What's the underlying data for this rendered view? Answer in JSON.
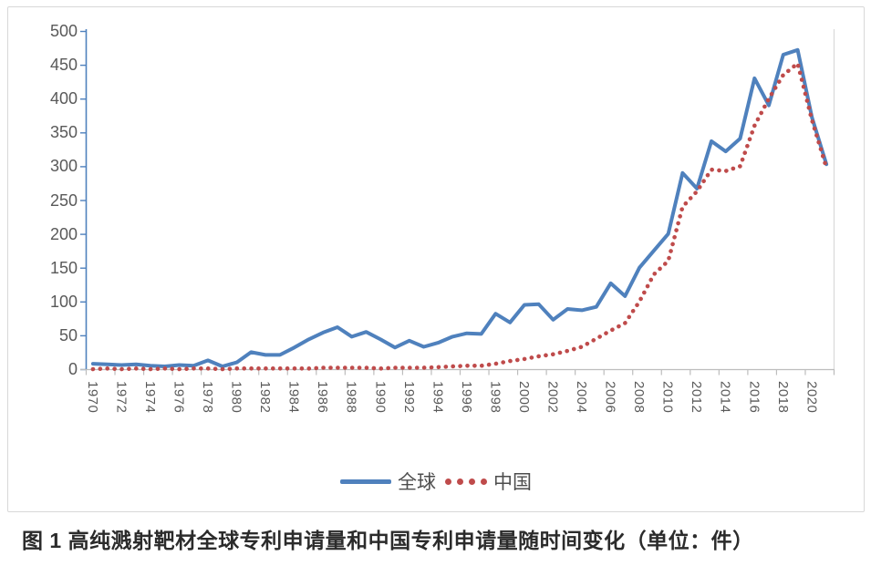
{
  "caption": "图 1  高纯溅射靶材全球专利申请量和中国专利申请量随时间变化（单位：件）",
  "legend": [
    {
      "label": "全球",
      "color": "#4f81bd",
      "style": "solid"
    },
    {
      "label": "中国",
      "color": "#bf4b4b",
      "style": "dotted"
    }
  ],
  "colors": {
    "global_series": "#4f81bd",
    "china_series": "#bf4b4b",
    "y_axis": "#4f81bd",
    "x_axis": "#bdbdbd",
    "plot_right_border": "#d9d9d9",
    "tick_text": "#595959"
  },
  "chart_data": {
    "type": "line",
    "title": "",
    "xlabel": "",
    "ylabel": "",
    "grid": false,
    "legend_position": "bottom",
    "ylim": [
      0,
      500
    ],
    "y_ticks": [
      0,
      50,
      100,
      150,
      200,
      250,
      300,
      350,
      400,
      450,
      500
    ],
    "x": [
      1970,
      1971,
      1972,
      1973,
      1974,
      1975,
      1976,
      1977,
      1978,
      1979,
      1980,
      1981,
      1982,
      1983,
      1984,
      1985,
      1986,
      1987,
      1988,
      1989,
      1990,
      1991,
      1992,
      1993,
      1994,
      1995,
      1996,
      1997,
      1998,
      1999,
      2000,
      2001,
      2002,
      2003,
      2004,
      2005,
      2006,
      2007,
      2008,
      2009,
      2010,
      2011,
      2012,
      2013,
      2014,
      2015,
      2016,
      2017,
      2018,
      2019,
      2020,
      2021
    ],
    "x_tick_labels": [
      "1970",
      "1972",
      "1974",
      "1976",
      "1978",
      "1980",
      "1982",
      "1984",
      "1986",
      "1988",
      "1990",
      "1992",
      "1994",
      "1996",
      "1998",
      "2000",
      "2002",
      "2004",
      "2006",
      "2008",
      "2010",
      "2012",
      "2014",
      "2016",
      "2018",
      "2020"
    ],
    "series": [
      {
        "name": "全球",
        "style": "solid",
        "values": [
          8,
          7,
          6,
          7,
          5,
          4,
          6,
          5,
          13,
          4,
          10,
          25,
          21,
          21,
          32,
          44,
          54,
          62,
          48,
          55,
          44,
          32,
          42,
          33,
          39,
          48,
          53,
          52,
          82,
          69,
          95,
          96,
          73,
          89,
          87,
          92,
          127,
          108,
          150,
          175,
          200,
          290,
          267,
          337,
          322,
          341,
          430,
          390,
          465,
          472,
          372,
          303
        ]
      },
      {
        "name": "中国",
        "style": "dotted",
        "values": [
          0,
          1,
          0,
          1,
          0,
          1,
          0,
          1,
          1,
          0,
          1,
          1,
          1,
          1,
          1,
          1,
          2,
          2,
          2,
          2,
          1,
          2,
          2,
          2,
          3,
          4,
          5,
          5,
          8,
          12,
          15,
          19,
          22,
          27,
          33,
          45,
          57,
          68,
          100,
          140,
          160,
          240,
          263,
          295,
          293,
          300,
          360,
          400,
          435,
          452,
          368,
          298
        ]
      }
    ]
  }
}
